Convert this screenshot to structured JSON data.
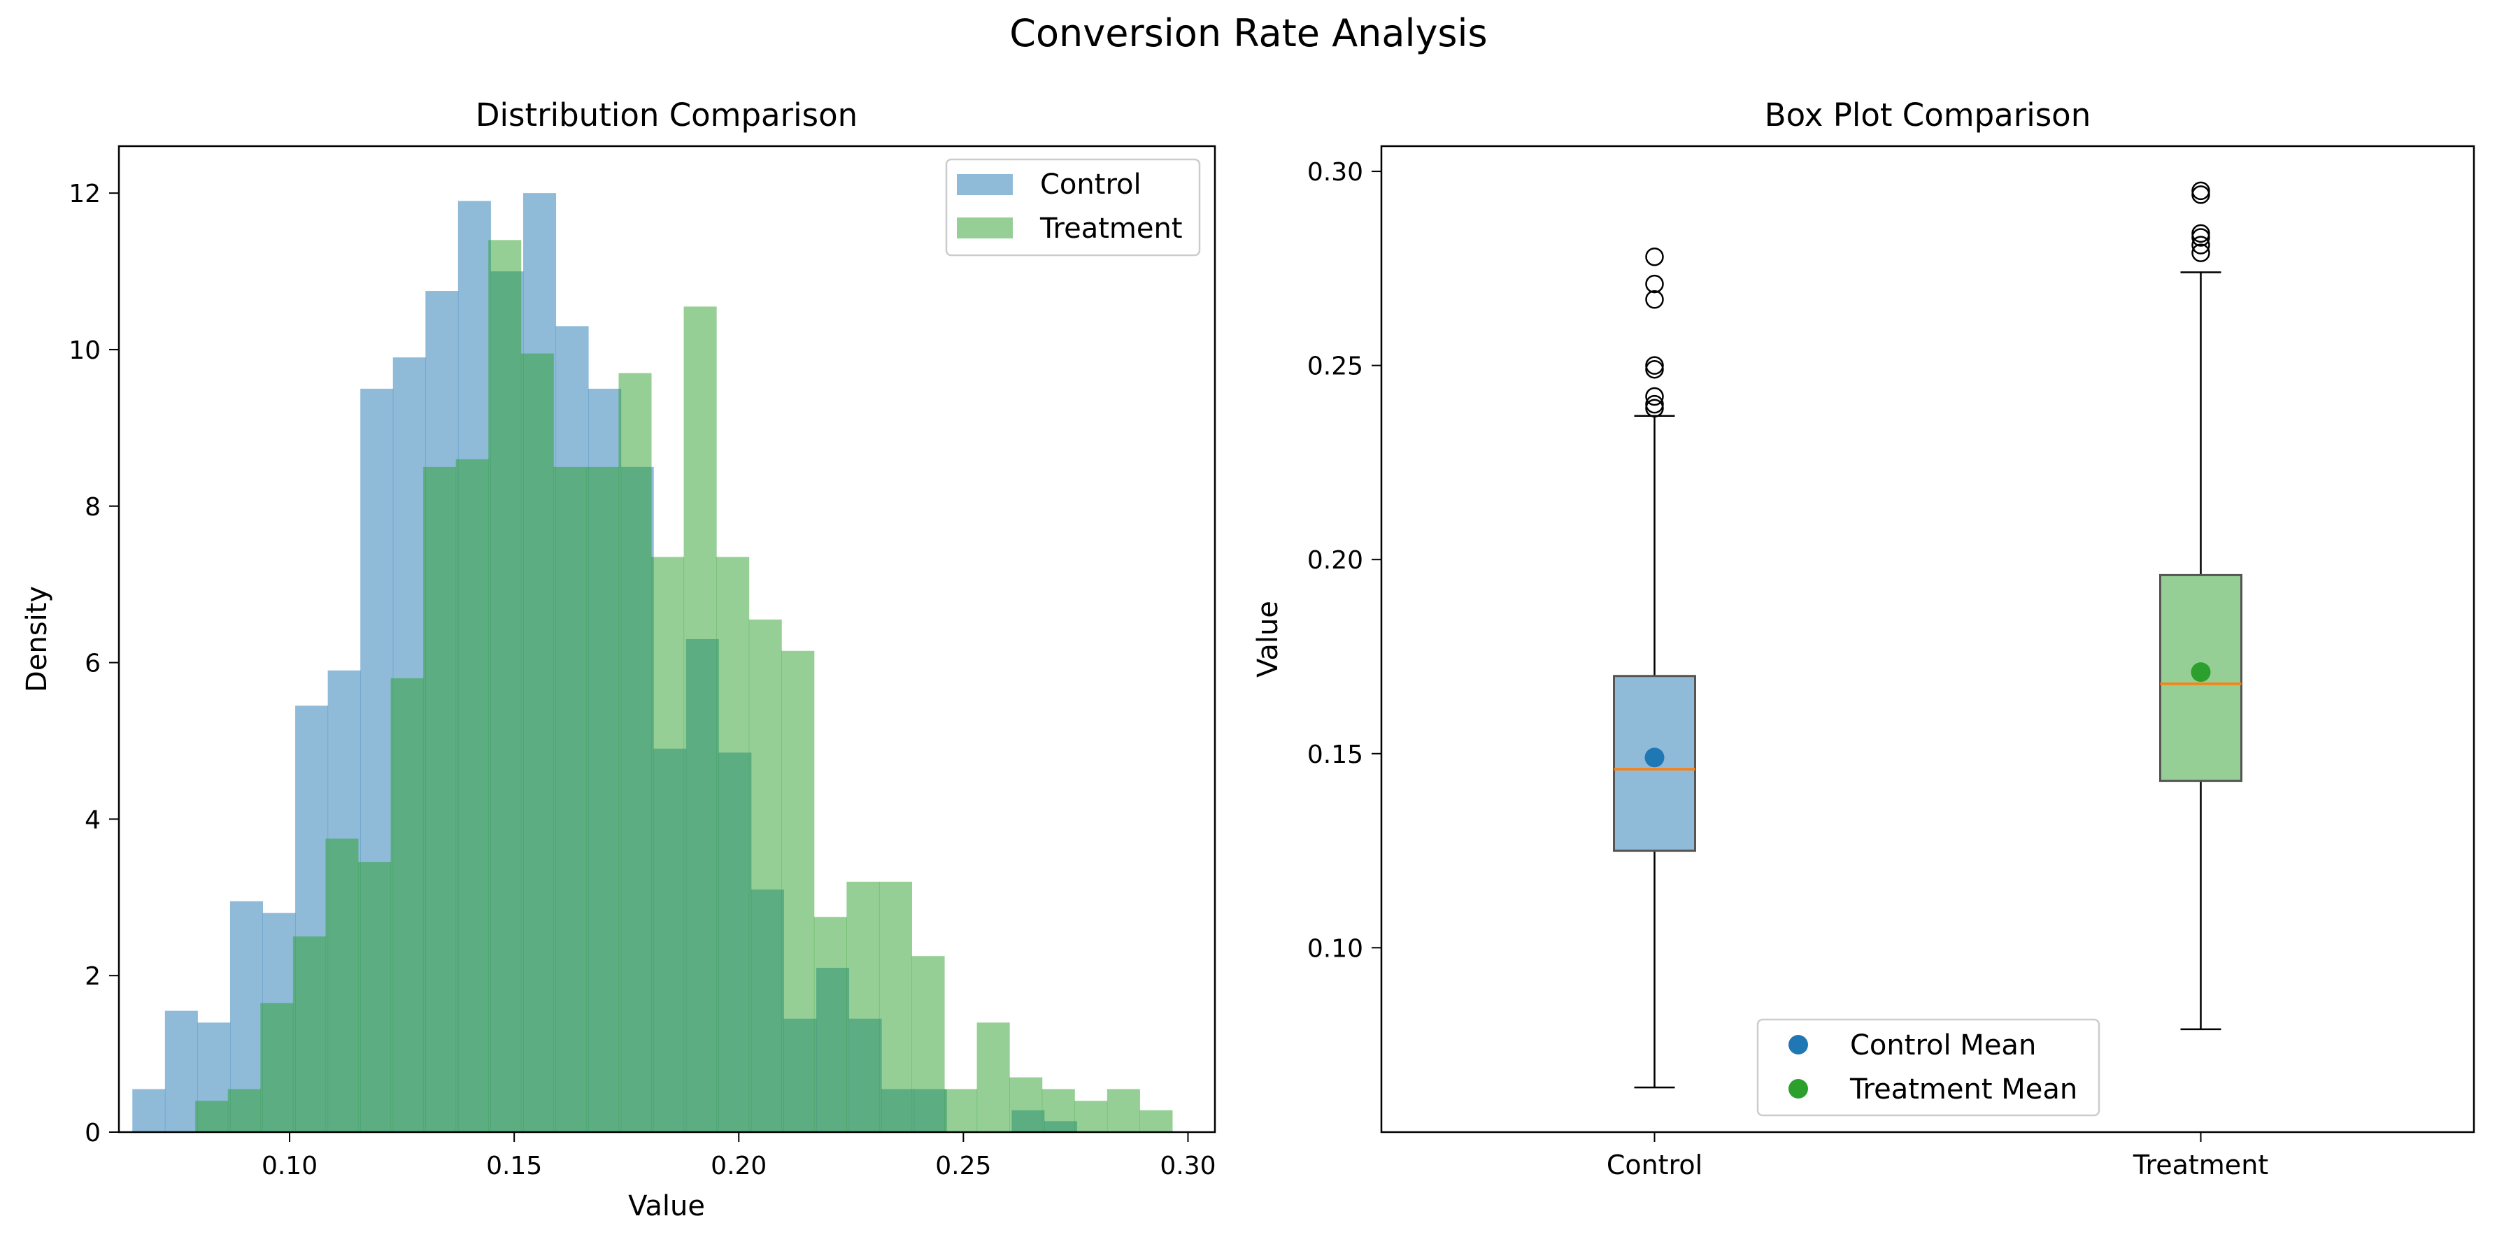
{
  "figure": {
    "title": "Conversion Rate Analysis"
  },
  "colors": {
    "control": "#1f77b4",
    "treatment": "#2ca02c",
    "median": "#ff7f0e"
  },
  "chart_data": [
    {
      "type": "histogram",
      "title": "Distribution Comparison",
      "xlabel": "Value",
      "ylabel": "Density",
      "xlim": [
        0.062,
        0.306
      ],
      "ylim": [
        0,
        12.6
      ],
      "xticks": [
        0.1,
        0.15,
        0.2,
        0.25,
        0.3
      ],
      "xtick_labels": [
        "0.10",
        "0.15",
        "0.20",
        "0.25",
        "0.30"
      ],
      "yticks": [
        0,
        2,
        4,
        6,
        8,
        10,
        12
      ],
      "ytick_labels": [
        "0",
        "2",
        "4",
        "6",
        "8",
        "10",
        "12"
      ],
      "legend": {
        "position": "top-right",
        "entries": [
          "Control",
          "Treatment"
        ]
      },
      "alpha": 0.5,
      "series": [
        {
          "name": "Control",
          "bin_start": 0.065,
          "bin_width": 0.00725,
          "values": [
            0.55,
            1.55,
            1.4,
            2.95,
            2.8,
            5.45,
            5.9,
            9.5,
            9.9,
            10.75,
            11.9,
            11.0,
            12.0,
            10.3,
            9.5,
            8.5,
            4.9,
            6.3,
            4.85,
            3.1,
            1.45,
            2.1,
            1.45,
            0.55,
            0.55,
            0,
            0,
            0.28,
            0.14
          ]
        },
        {
          "name": "Treatment",
          "bin_start": 0.079,
          "bin_width": 0.00725,
          "values": [
            0.4,
            0.55,
            1.65,
            2.5,
            3.75,
            3.45,
            5.8,
            8.5,
            8.6,
            11.4,
            9.95,
            8.5,
            8.5,
            9.7,
            7.35,
            10.55,
            7.35,
            6.55,
            6.15,
            2.75,
            3.2,
            3.2,
            2.25,
            0.55,
            1.4,
            0.7,
            0.55,
            0.4,
            0.55,
            0.28
          ]
        }
      ]
    },
    {
      "type": "box",
      "title": "Box Plot Comparison",
      "xlabel": "",
      "ylabel": "Value",
      "ylim": [
        0.0525,
        0.3065
      ],
      "categories": [
        "Control",
        "Treatment"
      ],
      "yticks": [
        0.1,
        0.15,
        0.2,
        0.25,
        0.3
      ],
      "ytick_labels": [
        "0.10",
        "0.15",
        "0.20",
        "0.25",
        "0.30"
      ],
      "legend": {
        "position": "lower-center",
        "entries": [
          "Control Mean",
          "Treatment Mean"
        ]
      },
      "series": [
        {
          "name": "Control",
          "whisker_low": 0.064,
          "q1": 0.125,
          "median": 0.146,
          "q3": 0.17,
          "whisker_high": 0.237,
          "mean": 0.149,
          "outliers": [
            0.239,
            0.24,
            0.242,
            0.249,
            0.25,
            0.267,
            0.271,
            0.278
          ]
        },
        {
          "name": "Treatment",
          "whisker_low": 0.079,
          "q1": 0.143,
          "median": 0.168,
          "q3": 0.196,
          "whisker_high": 0.274,
          "mean": 0.171,
          "outliers": [
            0.279,
            0.281,
            0.283,
            0.284,
            0.294,
            0.295
          ]
        }
      ]
    }
  ]
}
